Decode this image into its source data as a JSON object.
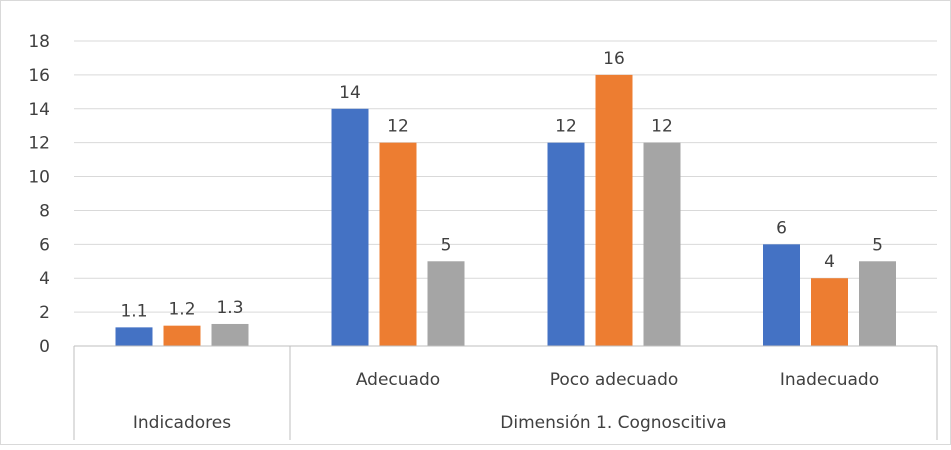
{
  "chart_data": {
    "type": "bar",
    "categories": [
      "",
      "",
      "",
      ""
    ],
    "category_labels": [
      "",
      "Adecuado",
      "Poco adecuado",
      "Inadecuado"
    ],
    "group_labels": [
      "Indicadores",
      "Dimensión 1.  Cognoscitiva"
    ],
    "series": [
      {
        "values": [
          1.1,
          14,
          12,
          6
        ],
        "data_labels": [
          "1.1",
          "14",
          "12",
          "6"
        ]
      },
      {
        "values": [
          1.2,
          12,
          16,
          4
        ],
        "data_labels": [
          "1.2",
          "12",
          "16",
          "4"
        ]
      },
      {
        "values": [
          1.3,
          5,
          12,
          5
        ],
        "data_labels": [
          "1.3",
          "5",
          "12",
          "5"
        ]
      }
    ],
    "colors": [
      "#4472c4",
      "#ed7d31",
      "#a5a5a5"
    ],
    "ylim": [
      0,
      18
    ],
    "yticks": [
      0,
      2,
      4,
      6,
      8,
      10,
      12,
      14,
      16,
      18
    ],
    "grid": true,
    "legend": "none",
    "title": "",
    "xlabel": "",
    "ylabel": ""
  }
}
